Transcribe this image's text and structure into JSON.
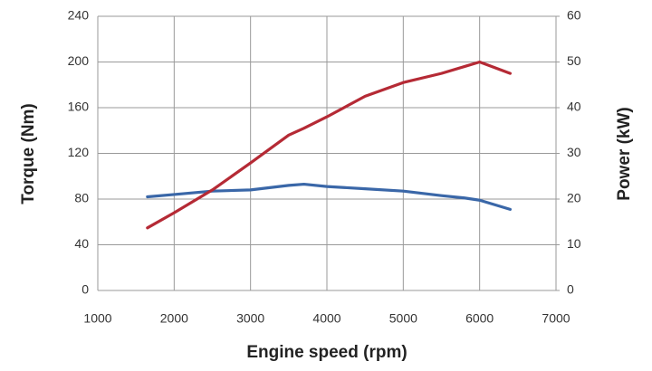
{
  "chart_data": {
    "type": "line",
    "x_label": "Engine speed (rpm)",
    "y_label": "Torque (Nm)",
    "y2_label": "Power (kW)",
    "x": [
      1650,
      2000,
      2500,
      3000,
      3500,
      3700,
      4000,
      4500,
      5000,
      5500,
      5800,
      6000,
      6400
    ],
    "series": [
      {
        "color": "#3a67a8",
        "values": [
          82,
          84,
          87,
          88,
          92,
          93,
          91,
          89,
          87,
          83,
          81,
          79,
          71
        ]
      },
      {
        "color": "#b52a35",
        "axis": "y2",
        "values": [
          13.7,
          17,
          22,
          27.9,
          34,
          35.5,
          38,
          42.5,
          45.5,
          47.5,
          49,
          50,
          47.5
        ]
      }
    ],
    "xlim": [
      1000,
      7000
    ],
    "xticks": [
      1000,
      2000,
      3000,
      4000,
      5000,
      6000,
      7000
    ],
    "ylim": [
      0,
      240
    ],
    "yticks": [
      0,
      40,
      80,
      120,
      160,
      200,
      240
    ],
    "y2lim": [
      0,
      60
    ],
    "y2ticks": [
      0,
      10,
      20,
      30,
      40,
      50,
      60
    ],
    "grid": true
  }
}
